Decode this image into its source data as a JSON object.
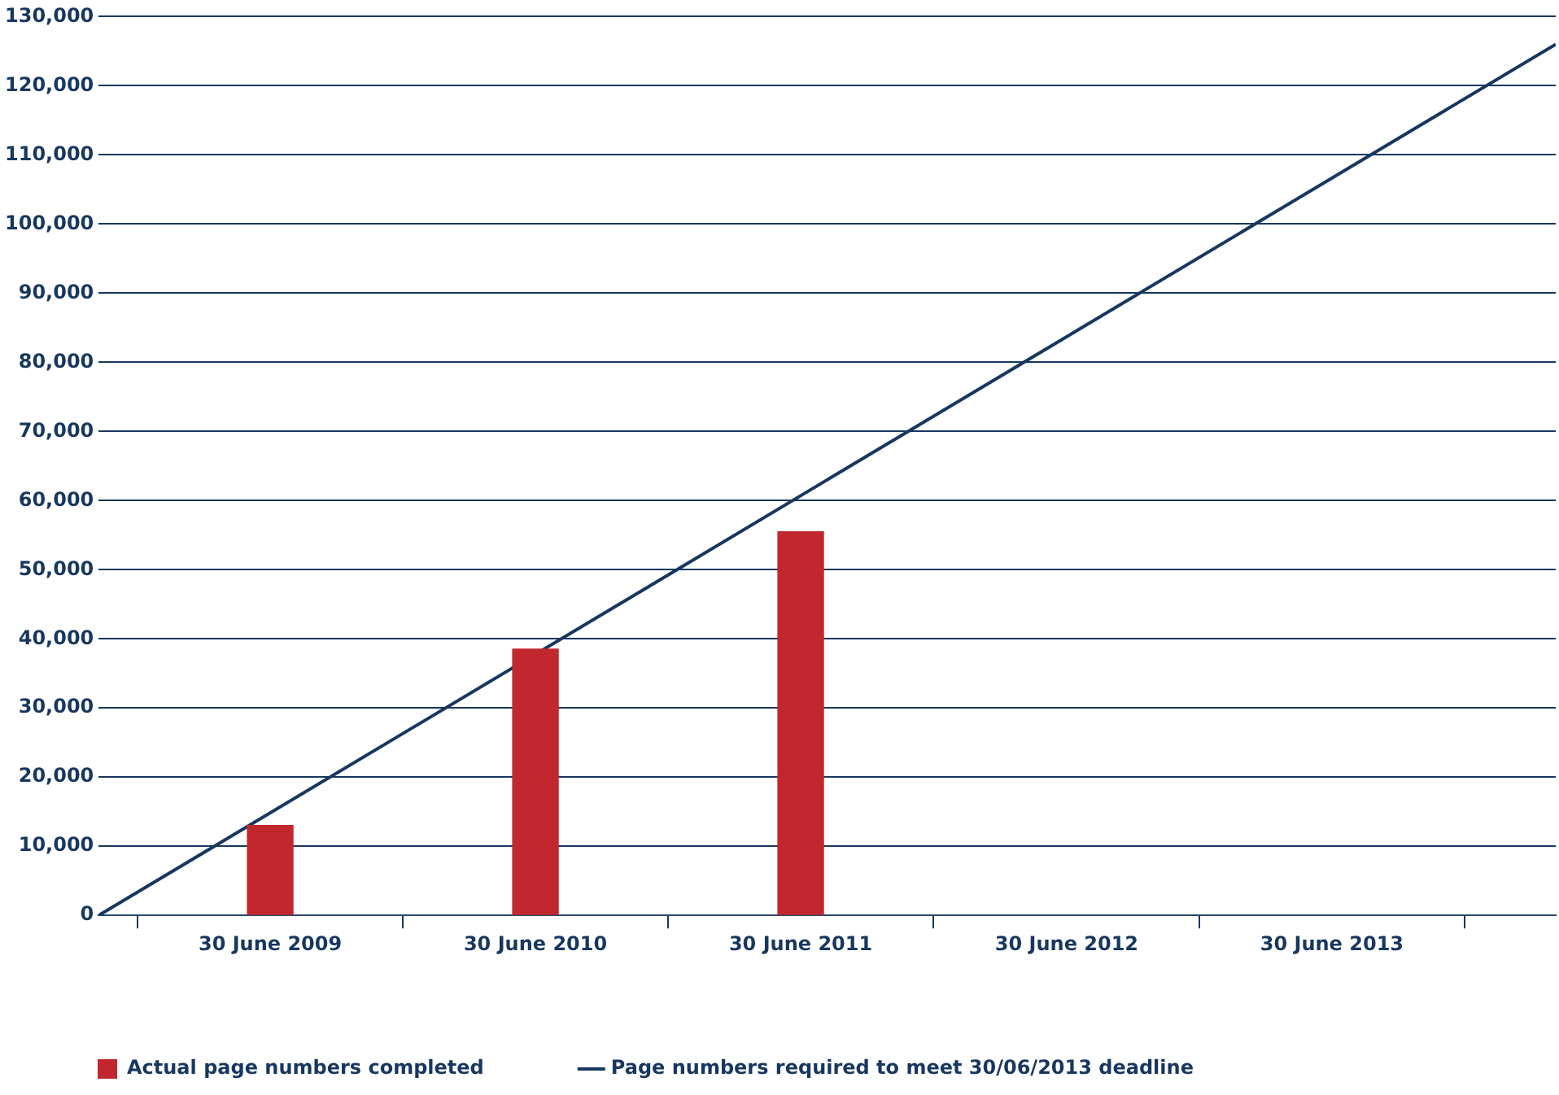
{
  "chart_data": {
    "type": "bar",
    "xlim": [
      "2008-11-06",
      "2014-05-04"
    ],
    "xticks": [
      {
        "value": "2009-06-30",
        "label": "30 June 2009"
      },
      {
        "value": "2010-06-30",
        "label": "30 June 2010"
      },
      {
        "value": "2011-06-30",
        "label": "30 June 2011"
      },
      {
        "value": "2012-06-30",
        "label": "30 June 2012"
      },
      {
        "value": "2013-06-30",
        "label": "30 June 2013"
      }
    ],
    "ylim": [
      0,
      130000
    ],
    "yticks": [
      {
        "value": 0,
        "label": "0"
      },
      {
        "value": 10000,
        "label": "10,000"
      },
      {
        "value": 20000,
        "label": "20,000"
      },
      {
        "value": 30000,
        "label": "30,000"
      },
      {
        "value": 40000,
        "label": "40,000"
      },
      {
        "value": 50000,
        "label": "50,000"
      },
      {
        "value": 60000,
        "label": "60,000"
      },
      {
        "value": 70000,
        "label": "70,000"
      },
      {
        "value": 80000,
        "label": "80,000"
      },
      {
        "value": 90000,
        "label": "90,000"
      },
      {
        "value": 100000,
        "label": "100,000"
      },
      {
        "value": 110000,
        "label": "110,000"
      },
      {
        "value": 120000,
        "label": "120,000"
      },
      {
        "value": 130000,
        "label": "130,000"
      }
    ],
    "grid": "y",
    "legend": "bottom",
    "series": [
      {
        "name": "Actual page numbers completed",
        "color": "#c1272d",
        "x": [
          "2009-06-30",
          "2010-06-30",
          "2011-06-30"
        ],
        "values": [
          13000,
          38500,
          55500
        ]
      },
      {
        "type": "line",
        "name": "Page numbers required to meet 30/06/2013 deadline",
        "color": "#17375e",
        "x": [
          "2008-11-06",
          "2014-05-04"
        ],
        "values": [
          0,
          126000
        ]
      }
    ]
  }
}
